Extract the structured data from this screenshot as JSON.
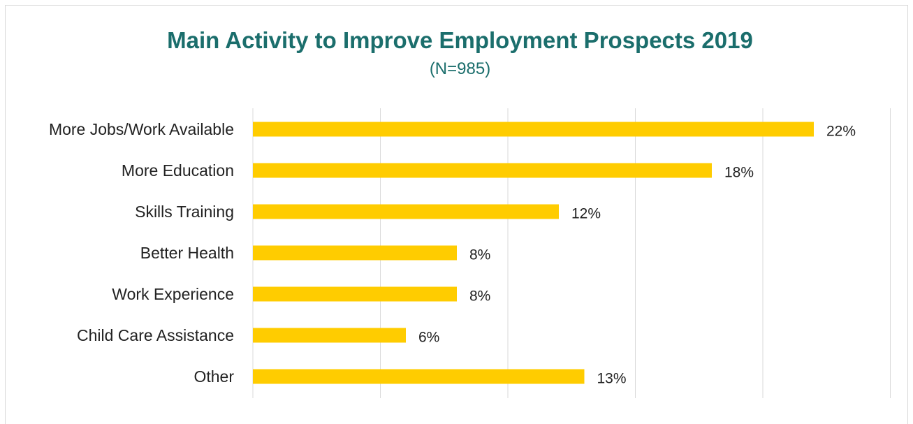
{
  "chart_data": {
    "type": "bar",
    "orientation": "horizontal",
    "title": "Main Activity to Improve Employment Prospects 2019",
    "subtitle": "(N=985)",
    "categories": [
      "More Jobs/Work Available",
      "More Education",
      "Skills Training",
      "Better Health",
      "Work Experience",
      "Child Care Assistance",
      "Other"
    ],
    "values": [
      22,
      18,
      12,
      8,
      8,
      6,
      13
    ],
    "value_labels": [
      "22%",
      "18%",
      "12%",
      "8%",
      "8%",
      "6%",
      "13%"
    ],
    "unit": "%",
    "xlim": [
      0,
      25
    ],
    "grid": true,
    "bar_color": "#FFCC00",
    "title_color": "#1B6E6C",
    "grid_color": "#D9D9D9"
  }
}
